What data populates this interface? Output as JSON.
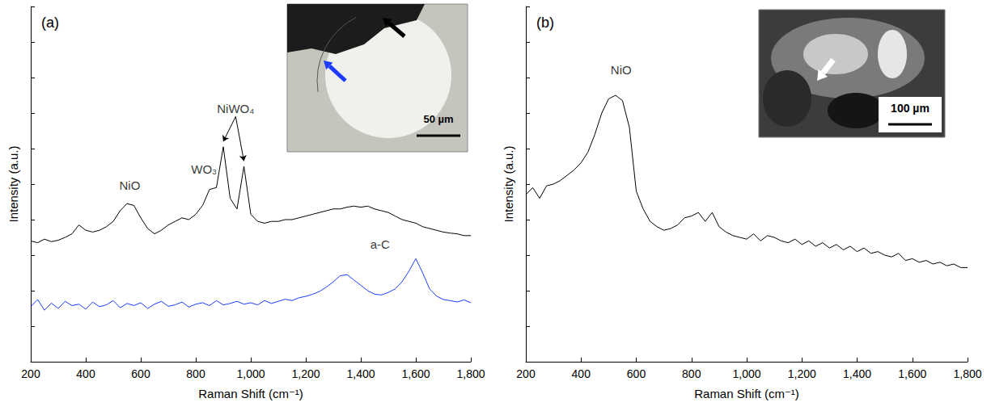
{
  "chart_data": [
    {
      "type": "line",
      "title": "(a)",
      "x_label": "Raman Shift (cm⁻¹)",
      "y_label": "Intensity (a.u.)",
      "xlim": [
        200,
        1800
      ],
      "xticks": [
        200,
        400,
        600,
        800,
        1000,
        1200,
        1400,
        1600,
        1800
      ],
      "ylim": [
        0,
        10
      ],
      "yticks": [
        0,
        1,
        2,
        3,
        4,
        5,
        6,
        7,
        8,
        9,
        10
      ],
      "tick_labels": "x",
      "grid": false,
      "x": [
        200,
        225,
        250,
        275,
        300,
        325,
        350,
        375,
        400,
        425,
        450,
        475,
        500,
        525,
        550,
        575,
        600,
        625,
        650,
        675,
        700,
        725,
        750,
        775,
        800,
        825,
        850,
        875,
        900,
        925,
        950,
        975,
        1000,
        1025,
        1050,
        1075,
        1100,
        1125,
        1150,
        1175,
        1200,
        1225,
        1250,
        1275,
        1300,
        1325,
        1350,
        1375,
        1400,
        1425,
        1450,
        1475,
        1500,
        1525,
        1550,
        1575,
        1600,
        1625,
        1650,
        1675,
        1700,
        1725,
        1750,
        1775,
        1800
      ],
      "series": [
        {
          "color": "#000000",
          "values": [
            3.4,
            3.35,
            3.45,
            3.38,
            3.42,
            3.5,
            3.6,
            3.85,
            3.7,
            3.65,
            3.7,
            3.8,
            3.95,
            4.25,
            4.45,
            4.4,
            4.05,
            3.75,
            3.6,
            3.7,
            3.85,
            3.95,
            4.05,
            4.0,
            4.15,
            4.4,
            4.85,
            4.9,
            6.05,
            4.6,
            4.3,
            5.5,
            4.15,
            3.95,
            3.9,
            3.95,
            3.95,
            4.0,
            4.0,
            4.05,
            4.1,
            4.15,
            4.2,
            4.25,
            4.3,
            4.3,
            4.35,
            4.38,
            4.35,
            4.38,
            4.3,
            4.25,
            4.2,
            4.1,
            4.0,
            3.95,
            3.9,
            3.8,
            3.75,
            3.7,
            3.65,
            3.62,
            3.6,
            3.55,
            3.55
          ]
        },
        {
          "color": "#1e3cff",
          "values": [
            1.55,
            1.75,
            1.45,
            1.65,
            1.5,
            1.7,
            1.58,
            1.62,
            1.48,
            1.68,
            1.55,
            1.6,
            1.72,
            1.52,
            1.64,
            1.58,
            1.66,
            1.5,
            1.62,
            1.7,
            1.56,
            1.6,
            1.68,
            1.54,
            1.62,
            1.66,
            1.58,
            1.72,
            1.6,
            1.64,
            1.7,
            1.62,
            1.66,
            1.6,
            1.72,
            1.64,
            1.7,
            1.76,
            1.72,
            1.8,
            1.84,
            1.9,
            1.98,
            2.1,
            2.25,
            2.42,
            2.45,
            2.3,
            2.15,
            2.0,
            1.9,
            1.88,
            1.95,
            2.05,
            2.25,
            2.55,
            2.9,
            2.5,
            2.05,
            1.85,
            1.75,
            1.72,
            1.68,
            1.74,
            1.66
          ]
        }
      ],
      "annotations": [
        {
          "text": "NiO",
          "x": 560,
          "y": 4.75
        },
        {
          "text": "WO₃",
          "x": 830,
          "y": 5.2
        },
        {
          "text": "NiWO₄",
          "x": 945,
          "y": 6.9,
          "arrows": [
            [
              900,
              6.2
            ],
            [
              975,
              5.65
            ]
          ]
        },
        {
          "text": "a-C",
          "x": 1470,
          "y": 3.1
        }
      ],
      "inset_scale_bar": "50 µm"
    },
    {
      "type": "line",
      "title": "(b)",
      "x_label": "Raman Shift (cm⁻¹)",
      "y_label": "Intensity (a.u.)",
      "xlim": [
        200,
        1800
      ],
      "xticks": [
        200,
        400,
        600,
        800,
        1000,
        1200,
        1400,
        1600,
        1800
      ],
      "ylim": [
        0,
        10
      ],
      "yticks": [
        0,
        1,
        2,
        3,
        4,
        5,
        6,
        7,
        8,
        9,
        10
      ],
      "tick_labels": "x",
      "grid": false,
      "x": [
        200,
        225,
        250,
        275,
        300,
        325,
        350,
        375,
        400,
        425,
        450,
        475,
        500,
        525,
        550,
        575,
        600,
        625,
        650,
        675,
        700,
        725,
        750,
        775,
        800,
        825,
        850,
        875,
        900,
        925,
        950,
        975,
        1000,
        1025,
        1050,
        1075,
        1100,
        1125,
        1150,
        1175,
        1200,
        1225,
        1250,
        1275,
        1300,
        1325,
        1350,
        1375,
        1400,
        1425,
        1450,
        1475,
        1500,
        1525,
        1550,
        1575,
        1600,
        1625,
        1650,
        1675,
        1700,
        1725,
        1750,
        1775,
        1800
      ],
      "series": [
        {
          "color": "#000000",
          "values": [
            4.7,
            4.9,
            4.6,
            4.95,
            5.0,
            5.1,
            5.25,
            5.4,
            5.6,
            5.9,
            6.4,
            7.0,
            7.4,
            7.5,
            7.35,
            6.6,
            4.8,
            4.3,
            3.95,
            3.8,
            3.7,
            3.75,
            3.85,
            4.05,
            4.1,
            4.2,
            3.95,
            4.2,
            3.8,
            3.65,
            3.55,
            3.5,
            3.45,
            3.6,
            3.4,
            3.55,
            3.5,
            3.4,
            3.35,
            3.45,
            3.3,
            3.4,
            3.25,
            3.35,
            3.2,
            3.3,
            3.15,
            3.25,
            3.1,
            3.2,
            3.05,
            3.1,
            3.0,
            2.95,
            3.05,
            2.85,
            2.9,
            2.8,
            2.85,
            2.75,
            2.8,
            2.7,
            2.75,
            2.65,
            2.65
          ]
        }
      ],
      "annotations": [
        {
          "text": "NiO",
          "x": 545,
          "y": 8.0
        }
      ],
      "inset_scale_bar": "100 µm"
    }
  ]
}
